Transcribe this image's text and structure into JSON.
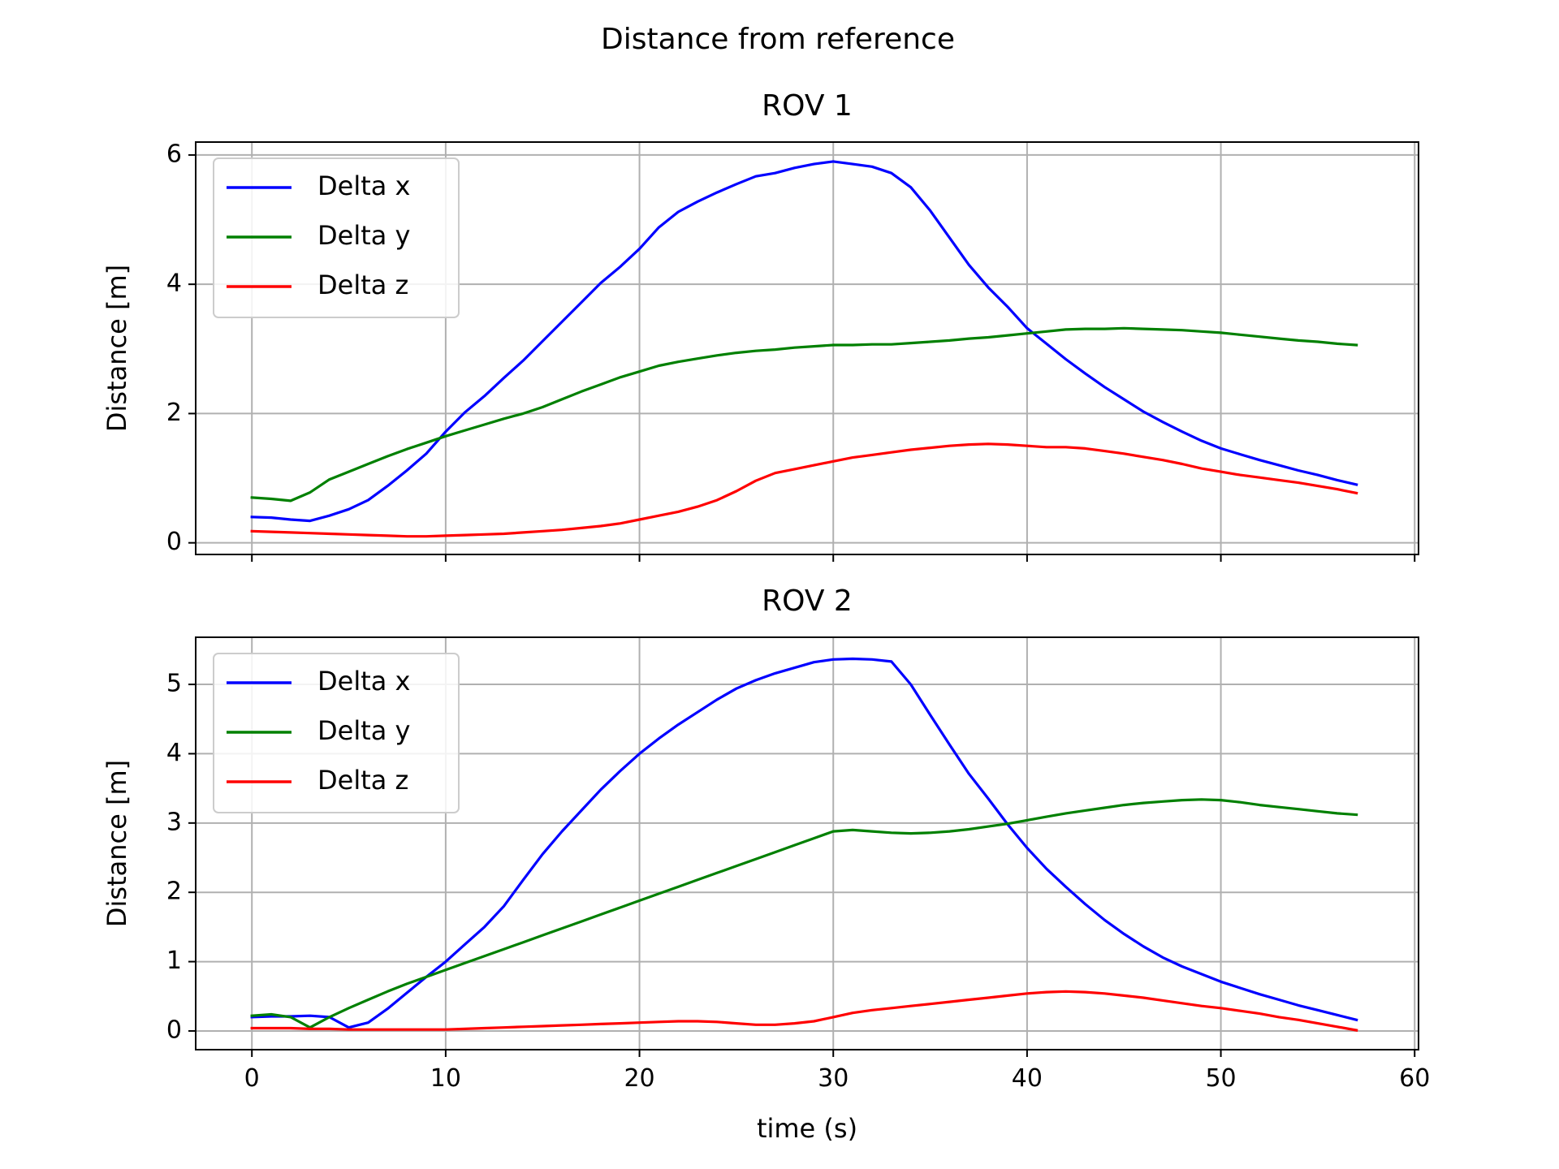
{
  "figure": {
    "suptitle": "Distance from reference"
  },
  "chart_data": [
    {
      "type": "line",
      "title": "ROV 1",
      "xlabel": "",
      "ylabel": "Distance [m]",
      "xlim": [
        -2.9,
        60.2
      ],
      "ylim": [
        -0.18,
        6.2
      ],
      "xticks": [
        0,
        10,
        20,
        30,
        40,
        50,
        60
      ],
      "xtick_labels_visible": false,
      "yticks": [
        0,
        2,
        4,
        6
      ],
      "grid": true,
      "legend_position": "upper left",
      "x": [
        0,
        1,
        2,
        3,
        4,
        5,
        6,
        7,
        8,
        9,
        10,
        11,
        12,
        13,
        14,
        15,
        16,
        17,
        18,
        19,
        20,
        21,
        22,
        23,
        24,
        25,
        26,
        27,
        28,
        29,
        30,
        31,
        32,
        33,
        34,
        35,
        36,
        37,
        38,
        39,
        40,
        41,
        42,
        43,
        44,
        45,
        46,
        47,
        48,
        49,
        50,
        51,
        52,
        53,
        54,
        55,
        56,
        57
      ],
      "series": [
        {
          "name": "Delta x",
          "color": "#0000ff",
          "values": [
            0.4,
            0.39,
            0.36,
            0.34,
            0.42,
            0.52,
            0.66,
            0.88,
            1.12,
            1.38,
            1.72,
            2.02,
            2.27,
            2.55,
            2.82,
            3.12,
            3.42,
            3.72,
            4.02,
            4.27,
            4.55,
            4.88,
            5.12,
            5.28,
            5.42,
            5.55,
            5.67,
            5.72,
            5.8,
            5.86,
            5.9,
            5.86,
            5.82,
            5.72,
            5.5,
            5.14,
            4.72,
            4.3,
            3.95,
            3.65,
            3.32,
            3.08,
            2.84,
            2.62,
            2.41,
            2.22,
            2.03,
            1.87,
            1.72,
            1.58,
            1.46,
            1.37,
            1.28,
            1.2,
            1.12,
            1.05,
            0.97,
            0.9
          ]
        },
        {
          "name": "Delta y",
          "color": "#008000",
          "values": [
            0.7,
            0.68,
            0.65,
            0.78,
            0.98,
            1.1,
            1.22,
            1.34,
            1.45,
            1.55,
            1.65,
            1.74,
            1.83,
            1.92,
            2.0,
            2.1,
            2.22,
            2.34,
            2.45,
            2.56,
            2.65,
            2.74,
            2.8,
            2.85,
            2.9,
            2.94,
            2.97,
            2.99,
            3.02,
            3.04,
            3.06,
            3.06,
            3.07,
            3.07,
            3.09,
            3.11,
            3.13,
            3.16,
            3.18,
            3.21,
            3.24,
            3.27,
            3.3,
            3.31,
            3.31,
            3.32,
            3.31,
            3.3,
            3.29,
            3.27,
            3.25,
            3.22,
            3.19,
            3.16,
            3.13,
            3.11,
            3.08,
            3.06
          ]
        },
        {
          "name": "Delta z",
          "color": "#ff0000",
          "values": [
            0.18,
            0.17,
            0.16,
            0.15,
            0.14,
            0.13,
            0.12,
            0.11,
            0.1,
            0.1,
            0.11,
            0.12,
            0.13,
            0.14,
            0.16,
            0.18,
            0.2,
            0.23,
            0.26,
            0.3,
            0.36,
            0.42,
            0.48,
            0.56,
            0.66,
            0.8,
            0.96,
            1.08,
            1.14,
            1.2,
            1.26,
            1.32,
            1.36,
            1.4,
            1.44,
            1.47,
            1.5,
            1.52,
            1.53,
            1.52,
            1.5,
            1.48,
            1.48,
            1.46,
            1.42,
            1.38,
            1.33,
            1.28,
            1.22,
            1.15,
            1.1,
            1.05,
            1.01,
            0.97,
            0.93,
            0.88,
            0.83,
            0.77
          ]
        }
      ]
    },
    {
      "type": "line",
      "title": "ROV 2",
      "xlabel": "time (s)",
      "ylabel": "Distance [m]",
      "xlim": [
        -2.9,
        60.2
      ],
      "ylim": [
        -0.27,
        5.68
      ],
      "xticks": [
        0,
        10,
        20,
        30,
        40,
        50,
        60
      ],
      "xtick_labels_visible": true,
      "yticks": [
        0,
        1,
        2,
        3,
        4,
        5
      ],
      "grid": true,
      "legend_position": "upper left",
      "x": [
        0,
        1,
        2,
        3,
        4,
        5,
        6,
        7,
        8,
        9,
        10,
        11,
        12,
        13,
        14,
        15,
        16,
        17,
        18,
        19,
        20,
        21,
        22,
        23,
        24,
        25,
        26,
        27,
        28,
        29,
        30,
        31,
        32,
        33,
        34,
        35,
        36,
        37,
        38,
        39,
        40,
        41,
        42,
        43,
        44,
        45,
        46,
        47,
        48,
        49,
        50,
        51,
        52,
        53,
        54,
        55,
        56,
        57
      ],
      "series": [
        {
          "name": "Delta x",
          "color": "#0000ff",
          "values": [
            0.2,
            0.21,
            0.21,
            0.22,
            0.2,
            0.05,
            0.12,
            0.32,
            0.55,
            0.78,
            1.0,
            1.25,
            1.5,
            1.8,
            2.18,
            2.55,
            2.88,
            3.18,
            3.48,
            3.75,
            4.0,
            4.22,
            4.42,
            4.6,
            4.78,
            4.94,
            5.06,
            5.16,
            5.24,
            5.32,
            5.36,
            5.37,
            5.36,
            5.33,
            5.0,
            4.56,
            4.13,
            3.71,
            3.35,
            2.98,
            2.64,
            2.34,
            2.08,
            1.83,
            1.6,
            1.4,
            1.22,
            1.06,
            0.93,
            0.82,
            0.71,
            0.62,
            0.53,
            0.45,
            0.37,
            0.3,
            0.23,
            0.16
          ]
        },
        {
          "name": "Delta y",
          "color": "#008000",
          "values": [
            0.22,
            0.24,
            0.2,
            0.05,
            0.2,
            0.33,
            0.45,
            0.57,
            0.68,
            0.78,
            0.88,
            0.98,
            1.08,
            1.18,
            1.28,
            1.38,
            1.48,
            1.58,
            1.68,
            1.78,
            1.88,
            1.98,
            2.08,
            2.18,
            2.28,
            2.38,
            2.48,
            2.58,
            2.68,
            2.78,
            2.88,
            2.9,
            2.88,
            2.86,
            2.85,
            2.86,
            2.88,
            2.91,
            2.95,
            2.99,
            3.04,
            3.09,
            3.14,
            3.18,
            3.22,
            3.26,
            3.29,
            3.31,
            3.33,
            3.34,
            3.33,
            3.3,
            3.26,
            3.23,
            3.2,
            3.17,
            3.14,
            3.12
          ]
        },
        {
          "name": "Delta z",
          "color": "#ff0000",
          "values": [
            0.04,
            0.04,
            0.04,
            0.03,
            0.03,
            0.02,
            0.02,
            0.02,
            0.02,
            0.02,
            0.02,
            0.03,
            0.04,
            0.05,
            0.06,
            0.07,
            0.08,
            0.09,
            0.1,
            0.11,
            0.12,
            0.13,
            0.14,
            0.14,
            0.13,
            0.11,
            0.09,
            0.09,
            0.11,
            0.14,
            0.2,
            0.26,
            0.3,
            0.33,
            0.36,
            0.39,
            0.42,
            0.45,
            0.48,
            0.51,
            0.54,
            0.56,
            0.57,
            0.56,
            0.54,
            0.51,
            0.48,
            0.44,
            0.4,
            0.36,
            0.33,
            0.29,
            0.25,
            0.2,
            0.16,
            0.11,
            0.06,
            0.01
          ]
        }
      ]
    }
  ]
}
